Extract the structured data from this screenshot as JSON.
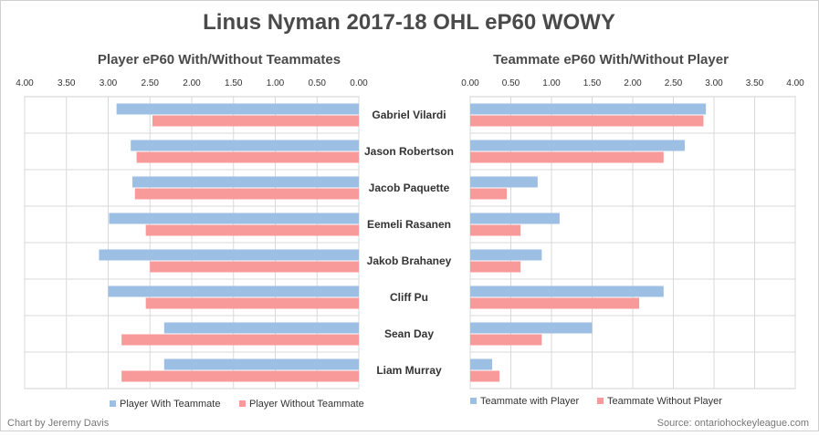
{
  "title": "Linus Nyman 2017-18 OHL eP60 WOWY",
  "credit": "Chart by Jeremy Davis",
  "source": "Source: ontariohockeyleague.com",
  "colors": {
    "with": "#9dbfe4",
    "without": "#f99a9a",
    "grid": "#d9d9d9",
    "frame": "#d0d0d0"
  },
  "chart_data": [
    {
      "type": "bar",
      "orientation": "horizontal",
      "title": "Player eP60 With/Without Teammates",
      "x_reversed": true,
      "xlim": [
        0,
        4
      ],
      "tick_labels": [
        "4.00",
        "3.50",
        "3.00",
        "2.50",
        "2.00",
        "1.50",
        "1.00",
        "0.50",
        "0.00"
      ],
      "tick_values": [
        4,
        3.5,
        3,
        2.5,
        2,
        1.5,
        1,
        0.5,
        0
      ],
      "categories": [
        "Gabriel Vilardi",
        "Jason Robertson",
        "Jacob Paquette",
        "Eemeli Rasanen",
        "Jakob Brahaney",
        "Cliff Pu",
        "Sean Day",
        "Liam Murray"
      ],
      "series": [
        {
          "name": "Player With Teammate",
          "values": [
            2.9,
            2.73,
            2.71,
            2.99,
            3.11,
            3.0,
            2.33,
            2.33
          ]
        },
        {
          "name": "Player Without Teammate",
          "values": [
            2.47,
            2.66,
            2.68,
            2.55,
            2.5,
            2.55,
            2.84,
            2.84
          ]
        }
      ],
      "legend_position": "bottom",
      "grid": true
    },
    {
      "type": "bar",
      "orientation": "horizontal",
      "title": "Teammate eP60 With/Without Player",
      "x_reversed": false,
      "xlim": [
        0,
        4
      ],
      "tick_labels": [
        "0.00",
        "0.50",
        "1.00",
        "1.50",
        "2.00",
        "2.50",
        "3.00",
        "3.50",
        "4.00"
      ],
      "tick_values": [
        0,
        0.5,
        1,
        1.5,
        2,
        2.5,
        3,
        3.5,
        4
      ],
      "categories": [
        "Gabriel Vilardi",
        "Jason Robertson",
        "Jacob Paquette",
        "Eemeli Rasanen",
        "Jakob Brahaney",
        "Cliff Pu",
        "Sean Day",
        "Liam Murray"
      ],
      "series": [
        {
          "name": "Teammate with Player",
          "values": [
            2.9,
            2.64,
            0.83,
            1.1,
            0.88,
            2.38,
            1.5,
            0.27
          ]
        },
        {
          "name": "Teammate Without Player",
          "values": [
            2.87,
            2.38,
            0.45,
            0.62,
            0.62,
            2.08,
            0.88,
            0.36
          ]
        }
      ],
      "legend_position": "bottom",
      "grid": true
    }
  ]
}
